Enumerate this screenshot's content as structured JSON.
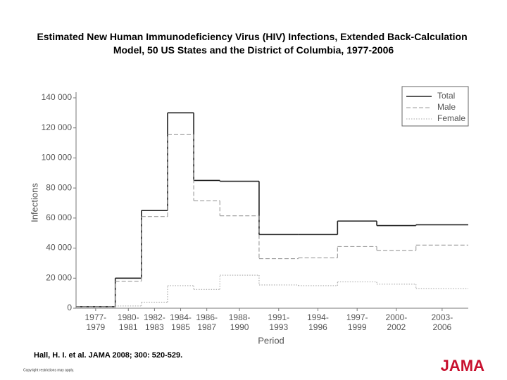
{
  "chart_data": {
    "type": "step",
    "title": "Estimated New Human Immunodeficiency Virus (HIV) Infections, Extended Back-Calculation Model, 50 US States and the District of Columbia, 1977-2006",
    "xlabel": "Period",
    "ylabel": "Infections",
    "categories": [
      "1977-1979",
      "1980-1981",
      "1982-1983",
      "1984-1985",
      "1986-1987",
      "1988-1990",
      "1991-1993",
      "1994-1996",
      "1997-1999",
      "2000-2002",
      "2003-2006"
    ],
    "series": [
      {
        "name": "Total",
        "color": "#222222",
        "line_style": "solid",
        "values": [
          1000,
          20000,
          65000,
          130000,
          85000,
          84500,
          49000,
          49000,
          58000,
          55000,
          55500
        ]
      },
      {
        "name": "Male",
        "color": "#999999",
        "line_style": "dashed",
        "values": [
          1000,
          18000,
          61000,
          115500,
          71500,
          61500,
          33000,
          33500,
          41000,
          38500,
          42000
        ]
      },
      {
        "name": "Female",
        "color": "#aaaaaa",
        "line_style": "dotted",
        "values": [
          200,
          1500,
          4000,
          15000,
          12500,
          22000,
          15500,
          15000,
          17500,
          16000,
          13000
        ]
      }
    ],
    "ylim": [
      0,
      140000
    ],
    "yticks": [
      0,
      {
        "value": 20000,
        "label": "20 000"
      },
      {
        "value": 40000,
        "label": "40 000"
      },
      {
        "value": 60000,
        "label": "60 000"
      },
      {
        "value": 80000,
        "label": "80 000"
      },
      {
        "value": 100000,
        "label": "100 000"
      },
      {
        "value": 120000,
        "label": "120 000"
      },
      {
        "value": 140000,
        "label": "140 000"
      }
    ],
    "legend": "upper right"
  },
  "citation": "Hall, H. I. et al. JAMA 2008; 300: 520-529.",
  "copyright": "Copyright restrictions may apply.",
  "logo": "JAMA"
}
